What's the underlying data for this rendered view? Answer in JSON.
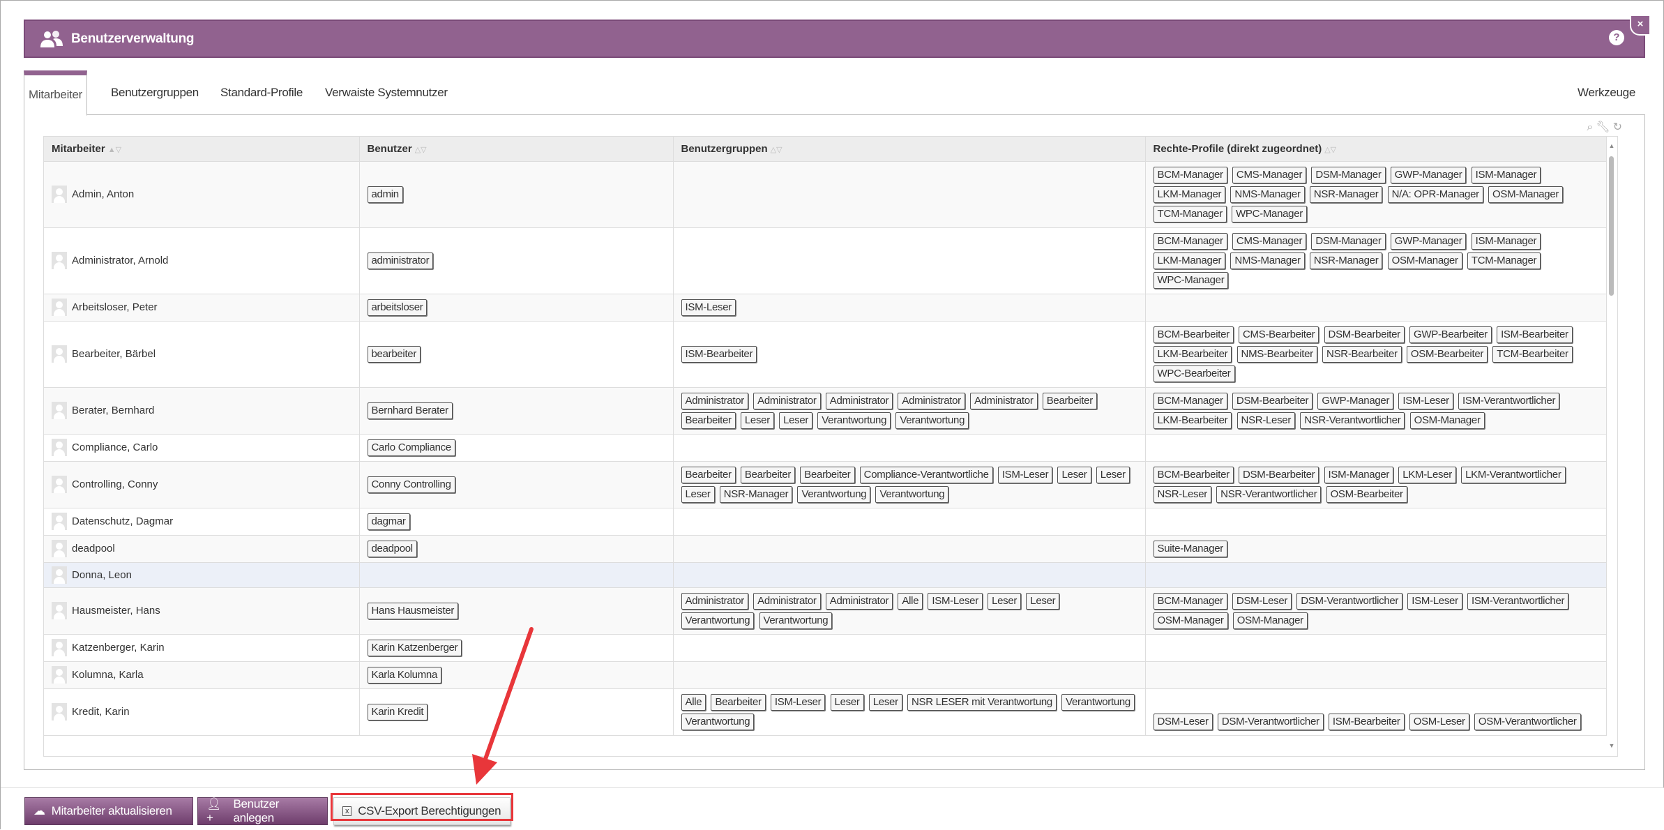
{
  "header": {
    "title": "Benutzerverwaltung",
    "help": "?",
    "close": "×"
  },
  "tabs": [
    {
      "label": "Mitarbeiter",
      "active": true
    },
    {
      "label": "Benutzergruppen"
    },
    {
      "label": "Standard-Profile"
    },
    {
      "label": "Verwaiste Systemnutzer"
    }
  ],
  "tools_label": "Werkzeuge",
  "table": {
    "columns": [
      "Mitarbeiter",
      "Benutzer",
      "Benutzergruppen",
      "Rechte-Profile (direkt zugeordnet)"
    ],
    "rows": [
      {
        "name": "Admin, Anton",
        "user": "admin",
        "groups": [],
        "profiles": [
          "BCM-Manager",
          "CMS-Manager",
          "DSM-Manager",
          "GWP-Manager",
          "ISM-Manager",
          "LKM-Manager",
          "NMS-Manager",
          "NSR-Manager",
          "N/A: OPR-Manager",
          "OSM-Manager",
          "TCM-Manager",
          "WPC-Manager"
        ]
      },
      {
        "name": "Administrator, Arnold",
        "user": "administrator",
        "groups": [],
        "profiles": [
          "BCM-Manager",
          "CMS-Manager",
          "DSM-Manager",
          "GWP-Manager",
          "ISM-Manager",
          "LKM-Manager",
          "NMS-Manager",
          "NSR-Manager",
          "OSM-Manager",
          "TCM-Manager",
          "WPC-Manager"
        ]
      },
      {
        "name": "Arbeitsloser, Peter",
        "user": "arbeitsloser",
        "groups": [
          "ISM-Leser"
        ],
        "profiles": []
      },
      {
        "name": "Bearbeiter, Bärbel",
        "user": "bearbeiter",
        "groups": [
          "ISM-Bearbeiter"
        ],
        "profiles": [
          "BCM-Bearbeiter",
          "CMS-Bearbeiter",
          "DSM-Bearbeiter",
          "GWP-Bearbeiter",
          "ISM-Bearbeiter",
          "LKM-Bearbeiter",
          "NMS-Bearbeiter",
          "NSR-Bearbeiter",
          "OSM-Bearbeiter",
          "TCM-Bearbeiter",
          "WPC-Bearbeiter"
        ]
      },
      {
        "name": "Berater, Bernhard",
        "user": "Bernhard Berater",
        "groups": [
          "Administrator",
          "Administrator",
          "Administrator",
          "Administrator",
          "Administrator",
          "Bearbeiter",
          "Bearbeiter",
          "Leser",
          "Leser",
          "Verantwortung",
          "Verantwortung"
        ],
        "profiles": [
          "BCM-Manager",
          "DSM-Bearbeiter",
          "GWP-Manager",
          "ISM-Leser",
          "ISM-Verantwortlicher",
          "LKM-Bearbeiter",
          "NSR-Leser",
          "NSR-Verantwortlicher",
          "OSM-Manager"
        ]
      },
      {
        "name": "Compliance, Carlo",
        "user": "Carlo Compliance",
        "groups": [],
        "profiles": []
      },
      {
        "name": "Controlling, Conny",
        "user": "Conny Controlling",
        "groups": [
          "Bearbeiter",
          "Bearbeiter",
          "Bearbeiter",
          "Compliance-Verantwortliche",
          "ISM-Leser",
          "Leser",
          "Leser",
          "Leser",
          "NSR-Manager",
          "Verantwortung",
          "Verantwortung"
        ],
        "profiles": [
          "BCM-Bearbeiter",
          "DSM-Bearbeiter",
          "ISM-Manager",
          "LKM-Leser",
          "LKM-Verantwortlicher",
          "NSR-Leser",
          "NSR-Verantwortlicher",
          "OSM-Bearbeiter"
        ]
      },
      {
        "name": "Datenschutz, Dagmar",
        "user": "dagmar",
        "groups": [],
        "profiles": []
      },
      {
        "name": "deadpool",
        "user": "deadpool",
        "groups": [],
        "profiles": [
          "Suite-Manager"
        ]
      },
      {
        "name": "Donna, Leon",
        "user": "",
        "groups": [],
        "profiles": [],
        "highlighted": true
      },
      {
        "name": "Hausmeister, Hans",
        "user": "Hans Hausmeister",
        "groups": [
          "Administrator",
          "Administrator",
          "Administrator",
          "Alle",
          "ISM-Leser",
          "Leser",
          "Leser",
          "Verantwortung",
          "Verantwortung"
        ],
        "profiles": [
          "BCM-Manager",
          "DSM-Leser",
          "DSM-Verantwortlicher",
          "ISM-Leser",
          "ISM-Verantwortlicher",
          "OSM-Manager",
          "OSM-Manager"
        ]
      },
      {
        "name": "Katzenberger, Karin",
        "user": "Karin Katzenberger",
        "groups": [],
        "profiles": []
      },
      {
        "name": "Kolumna, Karla",
        "user": "Karla Kolumna",
        "groups": [],
        "profiles": []
      },
      {
        "name": "Kredit, Karin",
        "user": "Karin Kredit",
        "groups": [
          "Alle",
          "Bearbeiter",
          "ISM-Leser",
          "Leser",
          "Leser",
          "NSR LESER mit Verantwortung",
          "Verantwortung",
          "Verantwortung"
        ],
        "profiles": [
          "DSM-Leser",
          "DSM-Verantwortlicher",
          "ISM-Bearbeiter",
          "OSM-Leser",
          "OSM-Verantwortlicher"
        ]
      }
    ]
  },
  "footer": {
    "refresh": "Mitarbeiter aktualisieren",
    "create": "Benutzer anlegen",
    "csv": "CSV-Export Berechtigungen"
  },
  "colors": {
    "brand": "#91628f",
    "annotation": "#e8363a"
  }
}
